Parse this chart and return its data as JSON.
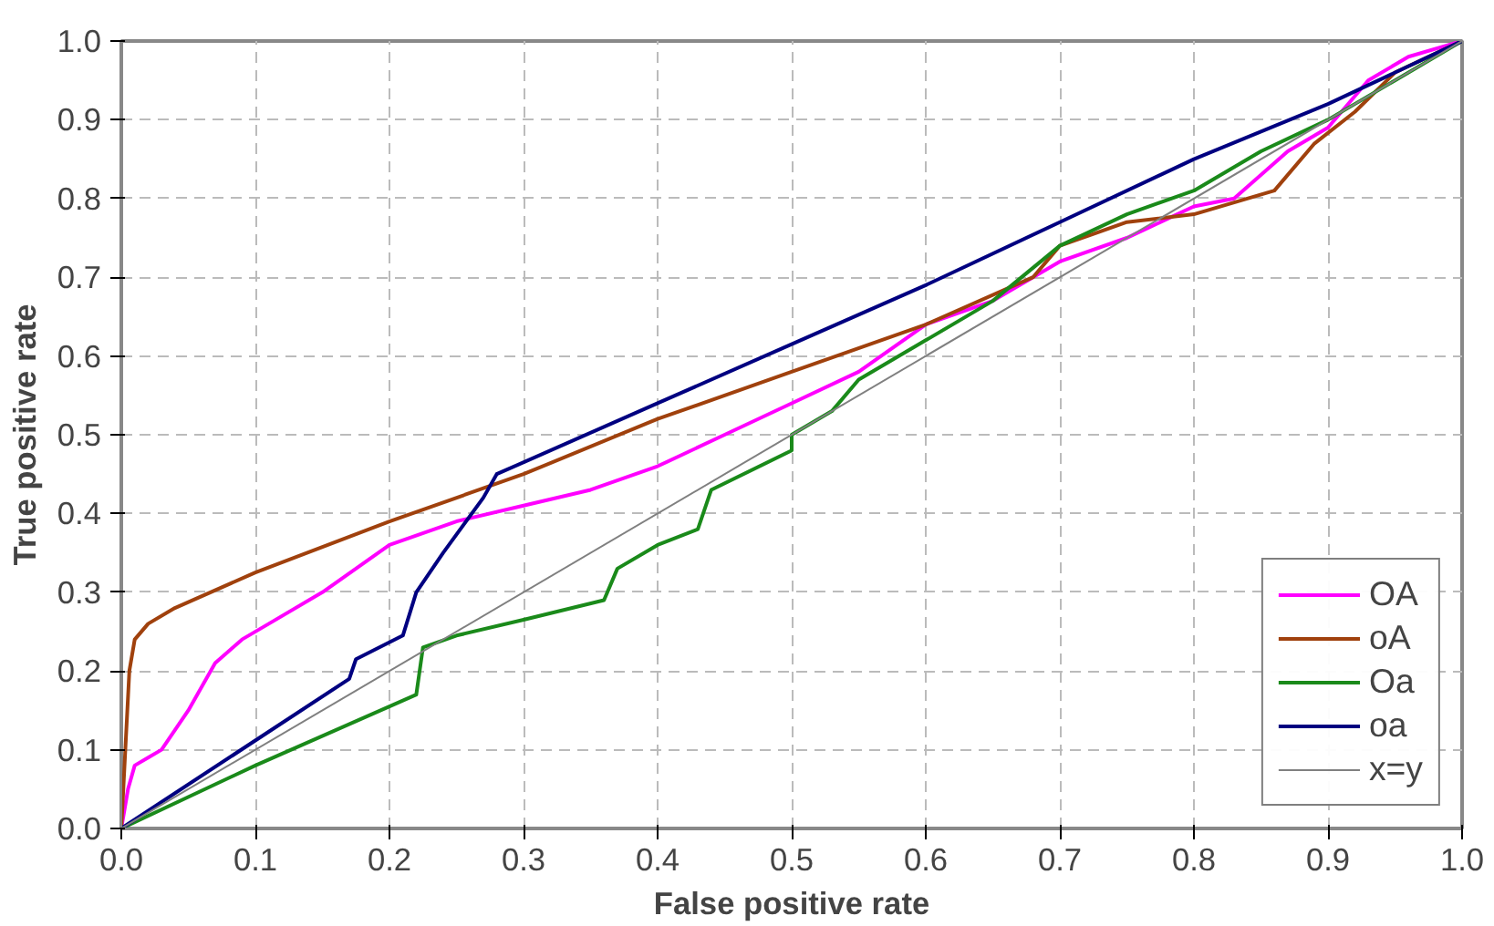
{
  "chart_data": {
    "type": "line",
    "xlabel": "False positive rate",
    "ylabel": "True positive rate",
    "xlim": [
      0,
      1
    ],
    "ylim": [
      0,
      1
    ],
    "xticks": [
      {
        "value": 0,
        "label": "0.0"
      },
      {
        "value": 0.1,
        "label": "0.1"
      },
      {
        "value": 0.2,
        "label": "0.2"
      },
      {
        "value": 0.3,
        "label": "0.3"
      },
      {
        "value": 0.4,
        "label": "0.4"
      },
      {
        "value": 0.5,
        "label": "0.5"
      },
      {
        "value": 0.6,
        "label": "0.6"
      },
      {
        "value": 0.7,
        "label": "0.7"
      },
      {
        "value": 0.8,
        "label": "0.8"
      },
      {
        "value": 0.9,
        "label": "0.9"
      },
      {
        "value": 1,
        "label": "1.0"
      }
    ],
    "yticks": [
      {
        "value": 0,
        "label": "0.0"
      },
      {
        "value": 0.1,
        "label": "0.1"
      },
      {
        "value": 0.2,
        "label": "0.2"
      },
      {
        "value": 0.3,
        "label": "0.3"
      },
      {
        "value": 0.4,
        "label": "0.4"
      },
      {
        "value": 0.5,
        "label": "0.5"
      },
      {
        "value": 0.6,
        "label": "0.6"
      },
      {
        "value": 0.7,
        "label": "0.7"
      },
      {
        "value": 0.8,
        "label": "0.8"
      },
      {
        "value": 0.9,
        "label": "0.9"
      },
      {
        "value": 1,
        "label": "1.0"
      }
    ],
    "grid": true,
    "legend": "bottom right",
    "line_style": "solid",
    "marker": "none",
    "series": [
      {
        "name": "OA",
        "color": "#ff00ff",
        "x": [
          0,
          0.005,
          0.01,
          0.02,
          0.03,
          0.05,
          0.07,
          0.09,
          0.11,
          0.15,
          0.2,
          0.25,
          0.3,
          0.35,
          0.4,
          0.45,
          0.5,
          0.55,
          0.6,
          0.65,
          0.7,
          0.75,
          0.8,
          0.83,
          0.87,
          0.9,
          0.93,
          0.96,
          1
        ],
        "values": [
          0,
          0.05,
          0.08,
          0.09,
          0.1,
          0.15,
          0.21,
          0.24,
          0.26,
          0.3,
          0.36,
          0.39,
          0.41,
          0.43,
          0.46,
          0.5,
          0.54,
          0.58,
          0.64,
          0.67,
          0.72,
          0.75,
          0.79,
          0.8,
          0.86,
          0.89,
          0.95,
          0.98,
          1
        ]
      },
      {
        "name": "oA",
        "color": "#a0410d",
        "x": [
          0,
          0.003,
          0.006,
          0.01,
          0.02,
          0.04,
          0.1,
          0.2,
          0.3,
          0.4,
          0.5,
          0.6,
          0.68,
          0.7,
          0.75,
          0.8,
          0.86,
          0.89,
          0.92,
          0.95,
          1
        ],
        "values": [
          0,
          0.1,
          0.2,
          0.24,
          0.26,
          0.28,
          0.325,
          0.39,
          0.45,
          0.52,
          0.58,
          0.64,
          0.7,
          0.74,
          0.77,
          0.78,
          0.81,
          0.87,
          0.91,
          0.96,
          1
        ]
      },
      {
        "name": "Oa",
        "color": "#1a8a1a",
        "x": [
          0,
          0.1,
          0.22,
          0.225,
          0.25,
          0.3,
          0.36,
          0.37,
          0.4,
          0.43,
          0.44,
          0.5,
          0.5,
          0.53,
          0.55,
          0.6,
          0.65,
          0.7,
          0.75,
          0.8,
          0.85,
          0.9,
          0.95,
          1
        ],
        "values": [
          0,
          0.08,
          0.17,
          0.23,
          0.245,
          0.265,
          0.29,
          0.33,
          0.36,
          0.38,
          0.43,
          0.48,
          0.5,
          0.53,
          0.57,
          0.62,
          0.67,
          0.74,
          0.78,
          0.81,
          0.86,
          0.9,
          0.95,
          1
        ]
      },
      {
        "name": "oa",
        "color": "#000080",
        "x": [
          0,
          0.17,
          0.175,
          0.21,
          0.22,
          0.24,
          0.27,
          0.28,
          0.4,
          0.5,
          0.6,
          0.7,
          0.8,
          0.9,
          1
        ],
        "values": [
          0,
          0.19,
          0.215,
          0.245,
          0.3,
          0.35,
          0.42,
          0.45,
          0.54,
          0.615,
          0.69,
          0.77,
          0.85,
          0.92,
          1
        ]
      },
      {
        "name": "x=y",
        "color": "#808080",
        "x": [
          0,
          1
        ],
        "values": [
          0,
          1
        ]
      }
    ]
  }
}
